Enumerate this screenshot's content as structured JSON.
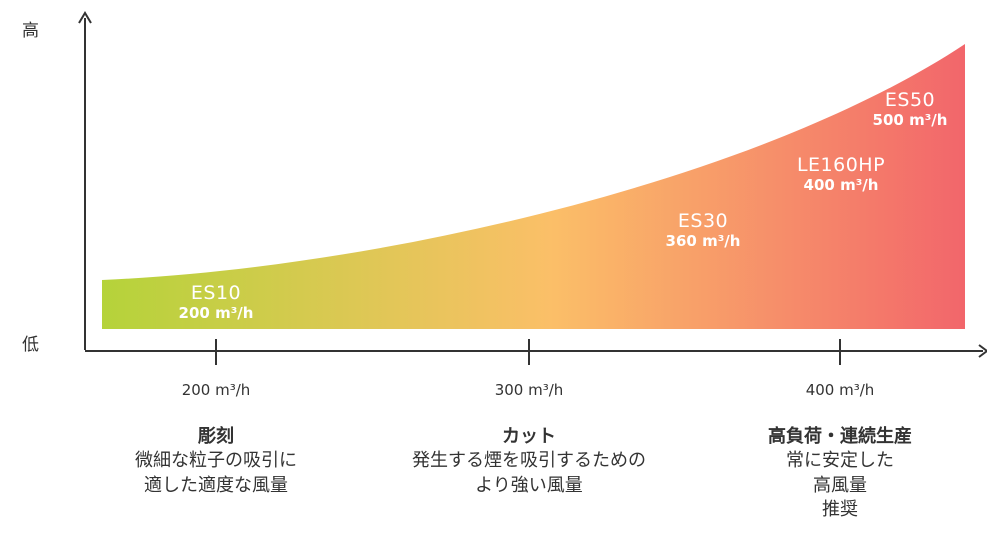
{
  "y_axis": {
    "high_label": "高",
    "low_label": "低"
  },
  "colors": {
    "start": "#b5d33a",
    "mid": "#fbbf68",
    "end": "#f2666b",
    "axis": "#333333"
  },
  "products": [
    {
      "name": "ES10",
      "flow": "200 m³/h"
    },
    {
      "name": "ES30",
      "flow": "360 m³/h"
    },
    {
      "name": "LE160HP",
      "flow": "400 m³/h"
    },
    {
      "name": "ES50",
      "flow": "500 m³/h"
    }
  ],
  "ticks": [
    {
      "label": "200 m³/h"
    },
    {
      "label": "300 m³/h"
    },
    {
      "label": "400 m³/h"
    }
  ],
  "categories": [
    {
      "title": "彫刻",
      "lines": [
        "微細な粒子の吸引に",
        "適した適度な風量"
      ]
    },
    {
      "title": "カット",
      "lines": [
        "発生する煙を吸引するための",
        "より強い風量"
      ]
    },
    {
      "title": "高負荷・連続生産",
      "lines": [
        "常に安定した",
        "高風量",
        "推奨"
      ]
    }
  ]
}
